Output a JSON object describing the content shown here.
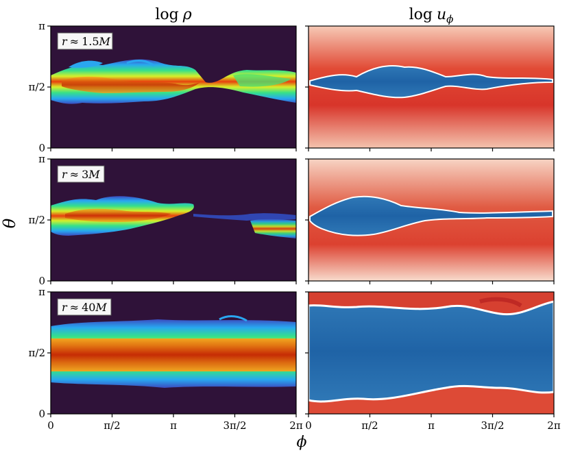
{
  "chart_data": {
    "type": "heatmap",
    "columns": [
      {
        "title_base": "log",
        "title_sym": "ρ",
        "title_sub": "",
        "colormap": "turbo-like"
      },
      {
        "title_base": "log",
        "title_sym": "u",
        "title_sub": "ϕ",
        "colormap": "red-white-blue"
      }
    ],
    "rows": [
      {
        "label_lhs": "r",
        "label_op": "≈",
        "label_val": "1.5",
        "label_unit": "M"
      },
      {
        "label_lhs": "r",
        "label_op": "≈",
        "label_val": "3",
        "label_unit": "M"
      },
      {
        "label_lhs": "r",
        "label_op": "≈",
        "label_val": "40",
        "label_unit": "M"
      }
    ],
    "xlabel": "ϕ",
    "ylabel": "θ",
    "xlim": [
      0,
      6.2832
    ],
    "ylim": [
      0,
      3.1416
    ],
    "xticks": [
      0,
      1.5708,
      3.1416,
      4.7124,
      6.2832
    ],
    "xticklabels": [
      "0",
      "π/2",
      "π",
      "3π/2",
      "2π"
    ],
    "yticks": [
      0,
      1.5708,
      3.1416
    ],
    "yticklabels": [
      "0",
      "π/2",
      "π"
    ]
  }
}
